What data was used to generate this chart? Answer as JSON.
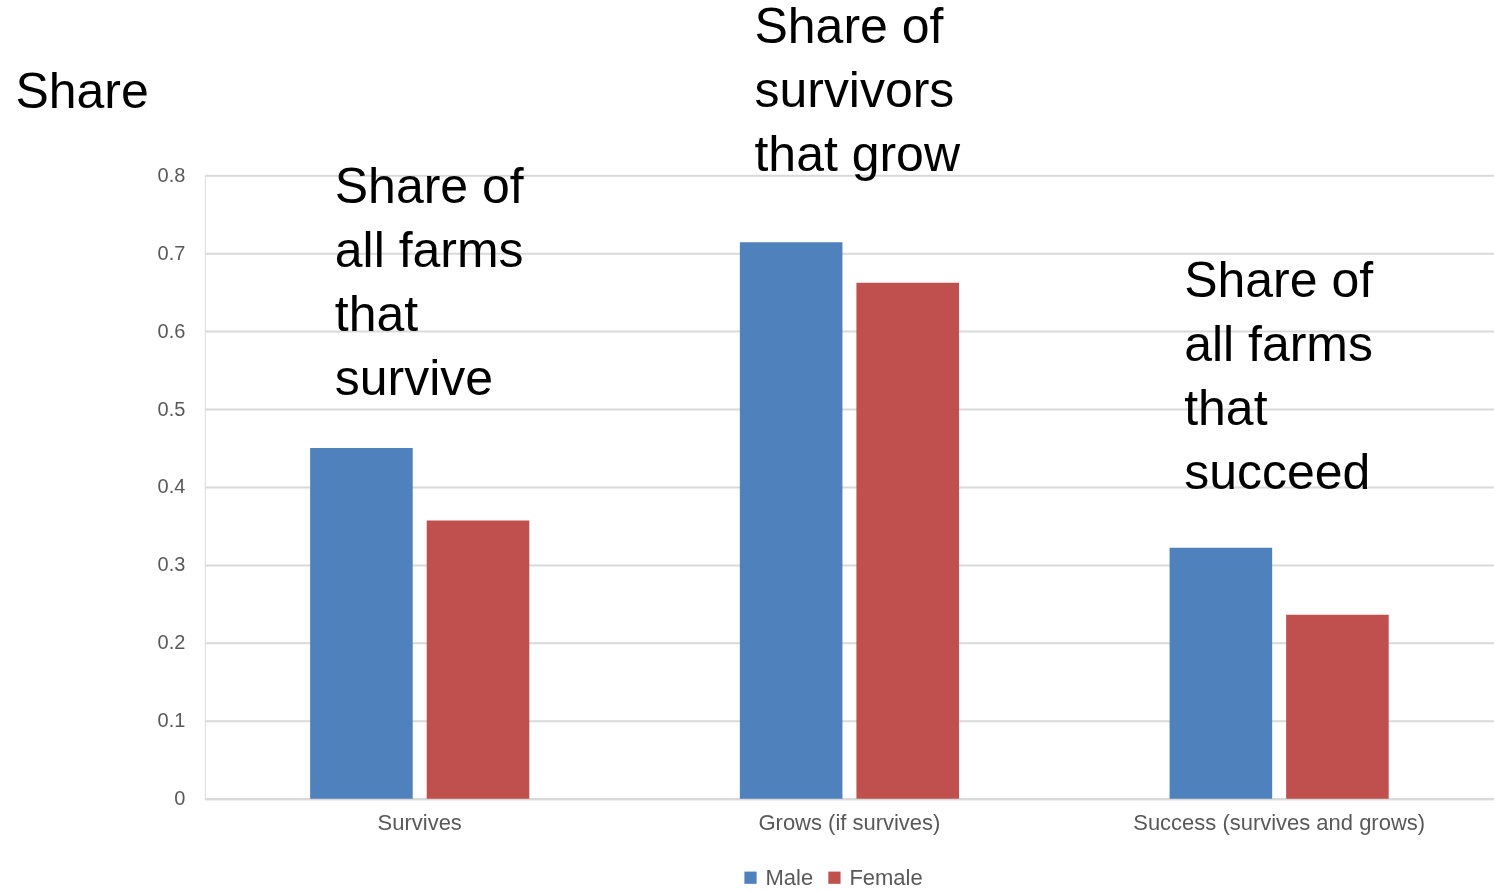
{
  "chart_data": {
    "type": "bar",
    "ylabel": "Share",
    "categories": [
      "Survives",
      "Grows (if survives)",
      "Success (survives and grows)"
    ],
    "series": [
      {
        "name": "Male",
        "color": "#4f81bd",
        "values": [
          0.45,
          0.714,
          0.322
        ]
      },
      {
        "name": "Female",
        "color": "#c0504d",
        "values": [
          0.357,
          0.662,
          0.236
        ]
      }
    ],
    "ylim": [
      0,
      0.8
    ],
    "yticks": [
      0,
      0.1,
      0.2,
      0.3,
      0.4,
      0.5,
      0.6,
      0.7,
      0.8
    ],
    "grid": "y",
    "legend": "bottom",
    "annotations": [
      "Share of\nall farms\nthat\nsurvive",
      "Share of\nsurvivors\nthat grow",
      "Share of\nall farms\nthat\nsucceed"
    ]
  }
}
